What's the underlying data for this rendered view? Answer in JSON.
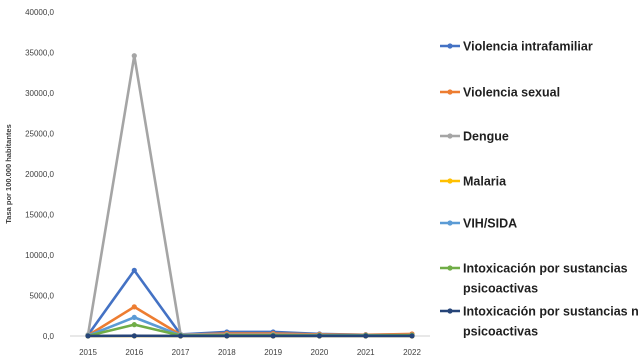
{
  "chart_data": {
    "type": "line",
    "title": "",
    "xlabel": "",
    "ylabel": "Tasa por 100.000 habitantes",
    "x": [
      "2015",
      "2016",
      "2017",
      "2018",
      "2019",
      "2020",
      "2021",
      "2022"
    ],
    "ylim": [
      0,
      40000
    ],
    "yticks": [
      0,
      5000,
      10000,
      15000,
      20000,
      25000,
      30000,
      35000,
      40000
    ],
    "ytick_labels": [
      "0,0",
      "5000,0",
      "10000,0",
      "15000,0",
      "20000,0",
      "25000,0",
      "30000,0",
      "35000,0",
      "40000,0"
    ],
    "grid": false,
    "legend_position": "right",
    "series": [
      {
        "name": "Violencia intrafamiliar",
        "color": "#4472C4",
        "values": [
          120,
          8100,
          200,
          500,
          500,
          250,
          150,
          200
        ]
      },
      {
        "name": "Violencia sexual",
        "color": "#ED7D31",
        "values": [
          60,
          3600,
          150,
          300,
          300,
          200,
          150,
          250
        ]
      },
      {
        "name": "Dengue",
        "color": "#A5A5A5",
        "values": [
          150,
          34600,
          200,
          150,
          150,
          100,
          100,
          100
        ]
      },
      {
        "name": "Malaria",
        "color": "#FFC000",
        "values": [
          0,
          10,
          0,
          0,
          0,
          0,
          0,
          0
        ]
      },
      {
        "name": "VIH/SIDA",
        "color": "#5B9BD5",
        "values": [
          30,
          2300,
          80,
          100,
          100,
          100,
          80,
          100
        ]
      },
      {
        "name": "Intoxicación por sustancias psicoactivas",
        "name_lines": [
          "Intoxicación por sustancias",
          "psicoactivas"
        ],
        "color": "#70AD47",
        "values": [
          20,
          1400,
          60,
          80,
          80,
          60,
          60,
          80
        ]
      },
      {
        "name": "Intoxicación por sustancias no psicoactivas",
        "name_lines": [
          "Intoxicación por sustancias no",
          "psicoactivas"
        ],
        "color": "#264478",
        "values": [
          5,
          20,
          5,
          5,
          5,
          5,
          5,
          5
        ]
      }
    ]
  }
}
